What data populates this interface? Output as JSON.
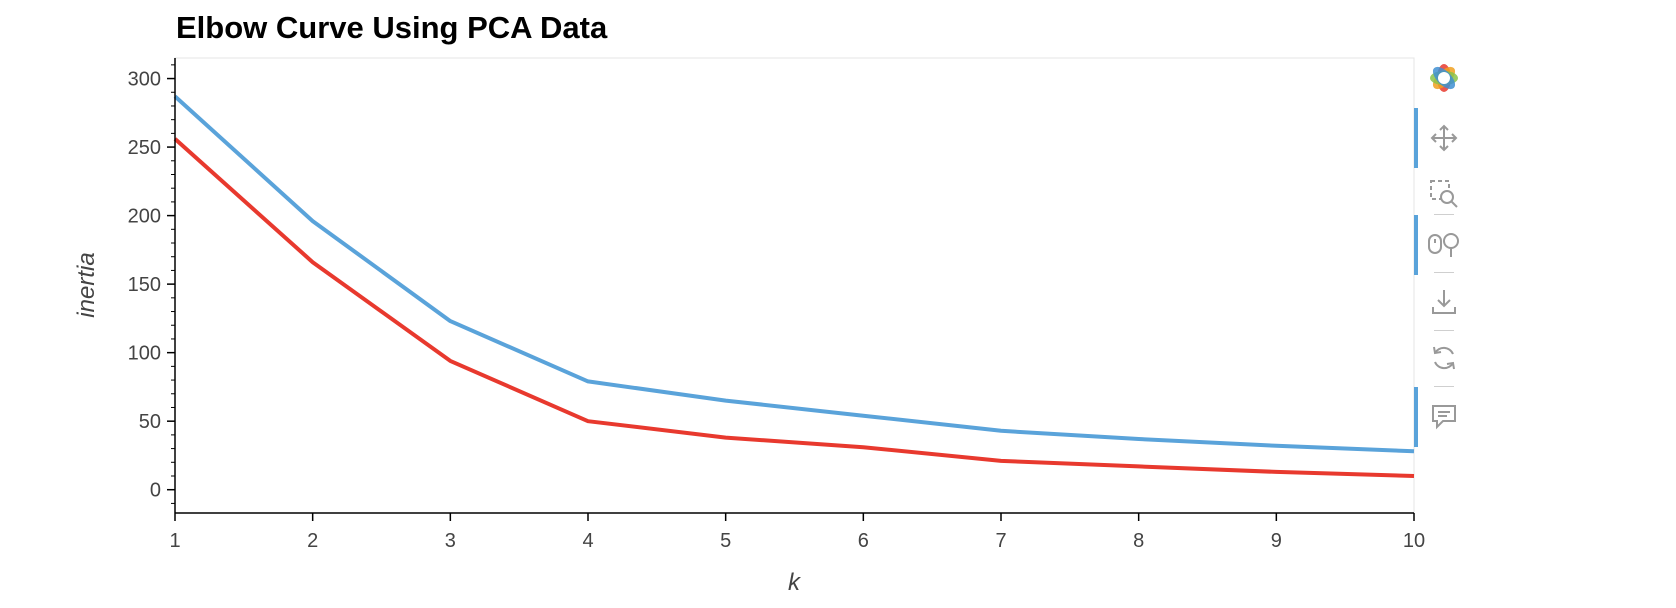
{
  "chart_data": {
    "type": "line",
    "title": "Elbow Curve Using PCA Data",
    "xlabel": "k",
    "ylabel": "inertia",
    "x": [
      1,
      2,
      3,
      4,
      5,
      6,
      7,
      8,
      9,
      10
    ],
    "xlim": [
      1,
      10
    ],
    "ylim": [
      -17,
      315
    ],
    "xticks": [
      1,
      2,
      3,
      4,
      5,
      6,
      7,
      8,
      9,
      10
    ],
    "yticks": [
      0,
      50,
      100,
      150,
      200,
      250,
      300
    ],
    "grid": false,
    "series": [
      {
        "color": "#5aa3da",
        "values": [
          287,
          196,
          123,
          79,
          65,
          54,
          43,
          37,
          32,
          28
        ]
      },
      {
        "color": "#e8392e",
        "values": [
          256,
          166,
          94,
          50,
          38,
          31,
          21,
          17,
          13,
          10
        ]
      }
    ]
  },
  "toolbar": {
    "tools": [
      {
        "icon": "bokeh-logo-icon",
        "active": false
      },
      {
        "icon": "pan-icon",
        "active": true
      },
      {
        "icon": "box-zoom-icon",
        "active": false
      },
      {
        "icon": "wheel-zoom-icon",
        "active": true
      },
      {
        "icon": "save-icon",
        "active": false
      },
      {
        "icon": "reset-icon",
        "active": false
      },
      {
        "icon": "hover-icon",
        "active": true
      }
    ]
  }
}
